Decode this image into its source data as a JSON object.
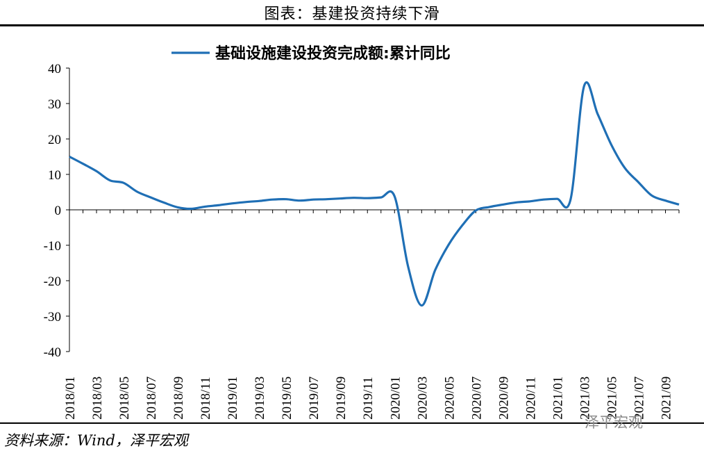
{
  "figure_title": "图表：基建投资持续下滑",
  "source_note": "资料来源：Wind，泽平宏观",
  "watermark": "泽平宏观",
  "colors": {
    "series": "#1f6fb5",
    "axis": "#000000"
  },
  "chart_data": {
    "type": "line",
    "legend_position": "top-center",
    "grid": false,
    "ylim": [
      -40,
      40
    ],
    "yticks": [
      40,
      30,
      20,
      10,
      0,
      -10,
      -20,
      -30,
      -40
    ],
    "ytick_labels": [
      "40",
      "30",
      "20",
      "10",
      "0",
      "-10",
      "-20",
      "-30",
      "-40"
    ],
    "x_tick_labels": [
      "2018/01",
      "2018/03",
      "2018/05",
      "2018/07",
      "2018/09",
      "2018/11",
      "2019/01",
      "2019/03",
      "2019/05",
      "2019/07",
      "2019/09",
      "2019/11",
      "2020/01",
      "2020/03",
      "2020/05",
      "2020/07",
      "2020/09",
      "2020/11",
      "2021/01",
      "2021/03",
      "2021/05",
      "2021/07",
      "2021/09"
    ],
    "x": [
      "2018/01",
      "2018/02",
      "2018/03",
      "2018/04",
      "2018/05",
      "2018/06",
      "2018/07",
      "2018/08",
      "2018/09",
      "2018/10",
      "2018/11",
      "2018/12",
      "2019/01",
      "2019/02",
      "2019/03",
      "2019/04",
      "2019/05",
      "2019/06",
      "2019/07",
      "2019/08",
      "2019/09",
      "2019/10",
      "2019/11",
      "2019/12",
      "2020/01",
      "2020/02",
      "2020/03",
      "2020/04",
      "2020/05",
      "2020/06",
      "2020/07",
      "2020/08",
      "2020/09",
      "2020/10",
      "2020/11",
      "2020/12",
      "2021/01",
      "2021/02",
      "2021/03",
      "2021/04",
      "2021/05",
      "2021/06",
      "2021/07",
      "2021/08",
      "2021/09",
      "2021/10"
    ],
    "series": [
      {
        "name": "基础设施建设投资完成额:累计同比",
        "values": [
          15.0,
          13.0,
          10.9,
          8.3,
          7.6,
          5.1,
          3.5,
          2.0,
          0.7,
          0.3,
          0.9,
          1.3,
          1.8,
          2.2,
          2.5,
          2.9,
          3.0,
          2.6,
          2.9,
          3.0,
          3.2,
          3.4,
          3.3,
          3.5,
          3.8,
          -16.0,
          -27.0,
          -17.0,
          -9.8,
          -4.4,
          -0.2,
          0.8,
          1.5,
          2.1,
          2.4,
          2.9,
          3.1,
          3.0,
          35.0,
          27.0,
          18.4,
          11.8,
          7.8,
          4.0,
          2.6,
          1.5
        ]
      }
    ]
  }
}
